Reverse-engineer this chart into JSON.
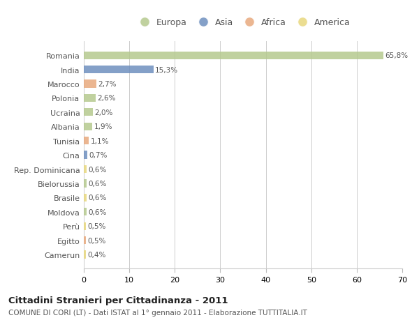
{
  "categories": [
    "Romania",
    "India",
    "Marocco",
    "Polonia",
    "Ucraina",
    "Albania",
    "Tunisia",
    "Cina",
    "Rep. Dominicana",
    "Bielorussia",
    "Brasile",
    "Moldova",
    "Perù",
    "Egitto",
    "Camerun"
  ],
  "values": [
    65.8,
    15.3,
    2.7,
    2.6,
    2.0,
    1.9,
    1.1,
    0.7,
    0.6,
    0.6,
    0.6,
    0.6,
    0.5,
    0.5,
    0.4
  ],
  "labels": [
    "65,8%",
    "15,3%",
    "2,7%",
    "2,6%",
    "2,0%",
    "1,9%",
    "1,1%",
    "0,7%",
    "0,6%",
    "0,6%",
    "0,6%",
    "0,6%",
    "0,5%",
    "0,5%",
    "0,4%"
  ],
  "colors": [
    "#b5c98e",
    "#6e8fbf",
    "#e8a97e",
    "#b5c98e",
    "#b5c98e",
    "#b5c98e",
    "#e8a97e",
    "#6e8fbf",
    "#e8d87e",
    "#b5c98e",
    "#e8d87e",
    "#b5c98e",
    "#e8d87e",
    "#e8a97e",
    "#e8d87e"
  ],
  "legend_labels": [
    "Europa",
    "Asia",
    "Africa",
    "America"
  ],
  "legend_colors": [
    "#b5c98e",
    "#6e8fbf",
    "#e8a97e",
    "#e8d87e"
  ],
  "title": "Cittadini Stranieri per Cittadinanza - 2011",
  "subtitle": "COMUNE DI CORI (LT) - Dati ISTAT al 1° gennaio 2011 - Elaborazione TUTTITALIA.IT",
  "xlim": [
    0,
    70
  ],
  "xticks": [
    0,
    10,
    20,
    30,
    40,
    50,
    60,
    70
  ],
  "bg_color": "#ffffff",
  "grid_color": "#cccccc",
  "bar_height": 0.55
}
